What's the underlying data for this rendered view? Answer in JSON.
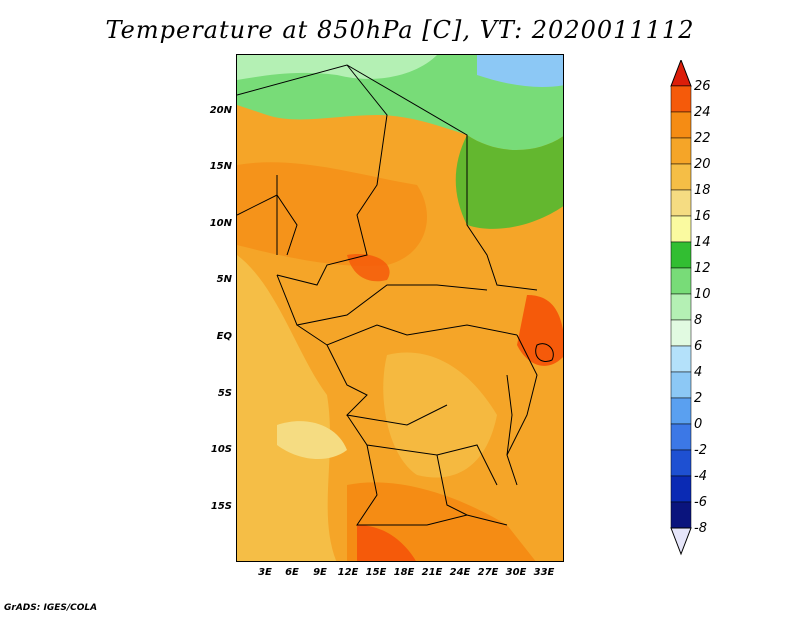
{
  "title": "Temperature at 850hPa [C], VT: 2020011112",
  "footer": "GrADS: IGES/COLA",
  "lat_labels": [
    "20N",
    "15N",
    "10N",
    "5N",
    "EQ",
    "5S",
    "10S",
    "15S"
  ],
  "lon_labels": [
    "3E",
    "6E",
    "9E",
    "12E",
    "15E",
    "18E",
    "21E",
    "24E",
    "27E",
    "30E",
    "33E"
  ],
  "colorbar": {
    "labels": [
      "26",
      "24",
      "22",
      "20",
      "18",
      "16",
      "14",
      "12",
      "10",
      "8",
      "6",
      "4",
      "2",
      "0",
      "-2",
      "-4",
      "-6",
      "-8"
    ],
    "colors": [
      "#f01e0a",
      "#f55a0a",
      "#f58c14",
      "#f5a528",
      "#f5be46",
      "#f5dc82",
      "#fafaa0",
      "#32be32",
      "#78dc78",
      "#b4f0b4",
      "#e1fae1",
      "#b4e1fa",
      "#8cc8f5",
      "#5aa0f0",
      "#3c78e6",
      "#1e50d2",
      "#0a2ab4",
      "#0a147d",
      "#06066e"
    ],
    "under_color": "#e6e6fa",
    "over_color": "#dc1e0a"
  },
  "regions": {
    "orange": "#f5a528",
    "light_orange": "#f5be46",
    "dark_orange": "#f58c14",
    "red_orange": "#f55a0a",
    "yellow": "#f5dc82",
    "green": "#78dc78",
    "light_green": "#b4f0b4",
    "dark_green": "#32be32",
    "blue": "#8cc8f5"
  }
}
